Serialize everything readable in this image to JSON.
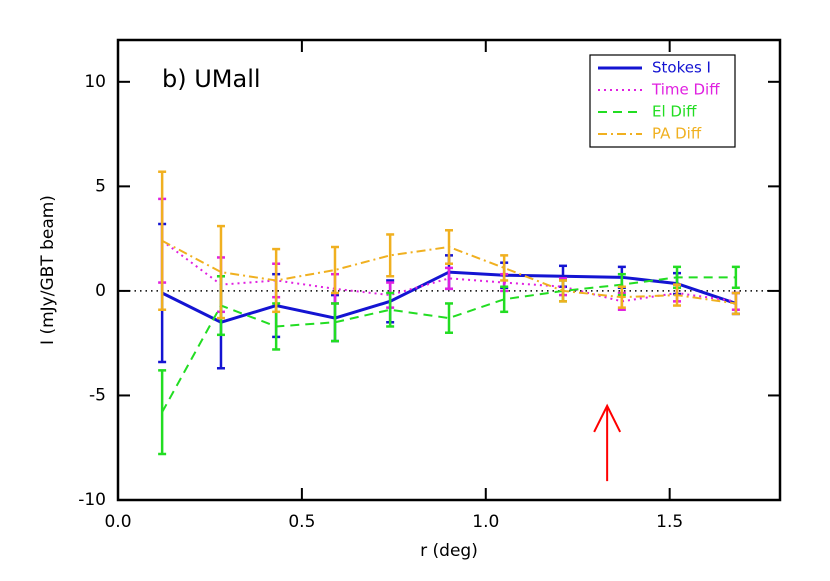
{
  "chart_data": {
    "type": "line",
    "annotation": "b) UMall",
    "x_label": "r (deg)",
    "y_label": "I (mJy/GBT beam)",
    "x": [
      0.12,
      0.28,
      0.43,
      0.59,
      0.74,
      0.9,
      1.05,
      1.21,
      1.37,
      1.52,
      1.68
    ],
    "series": [
      {
        "name": "Stokes I",
        "color": "#1414d2",
        "dash": "none",
        "values": [
          -0.1,
          -1.5,
          -0.7,
          -1.3,
          -0.5,
          0.9,
          0.75,
          0.7,
          0.65,
          0.35,
          -0.6
        ],
        "errors": [
          3.3,
          2.2,
          1.5,
          1.1,
          1.0,
          0.8,
          0.6,
          0.5,
          0.5,
          0.5,
          0.5
        ]
      },
      {
        "name": "Time Diff",
        "color": "#e020e0",
        "dash": "2 4",
        "values": [
          2.4,
          0.3,
          0.5,
          0.1,
          -0.2,
          0.6,
          0.4,
          0.2,
          -0.5,
          -0.1,
          -0.5
        ],
        "errors": [
          2.0,
          1.3,
          0.8,
          0.7,
          0.6,
          0.5,
          0.4,
          0.4,
          0.4,
          0.4,
          0.4
        ]
      },
      {
        "name": "El Diff",
        "color": "#22dd22",
        "dash": "9 6",
        "values": [
          -5.8,
          -0.7,
          -1.7,
          -1.5,
          -0.9,
          -1.3,
          -0.4,
          0.0,
          0.3,
          0.65,
          0.65
        ],
        "errors": [
          2.0,
          1.4,
          1.1,
          0.9,
          0.8,
          0.7,
          0.6,
          0.5,
          0.5,
          0.5,
          0.5
        ]
      },
      {
        "name": "PA Diff",
        "color": "#f0b020",
        "dash": "9 4 2 4",
        "values": [
          2.4,
          0.9,
          0.5,
          1.0,
          1.7,
          2.1,
          1.1,
          0.0,
          -0.3,
          -0.2,
          -0.6
        ],
        "errors": [
          3.3,
          2.2,
          1.5,
          1.1,
          1.0,
          0.8,
          0.6,
          0.5,
          0.5,
          0.5,
          0.5
        ]
      }
    ],
    "xlim": [
      0,
      1.8
    ],
    "ylim": [
      -10,
      12
    ],
    "xticks": [
      {
        "value": 0,
        "label": "0.0"
      },
      0.5,
      {
        "value": 1,
        "label": "1.0"
      },
      1.5
    ],
    "yticks": [
      -10,
      -5,
      0,
      5,
      10
    ],
    "zero_line": 0,
    "marker_arrow": {
      "x": 1.33,
      "y_from": -9.1,
      "y_to": -5.5,
      "color": "#ff0000"
    },
    "legend": "upper right"
  }
}
